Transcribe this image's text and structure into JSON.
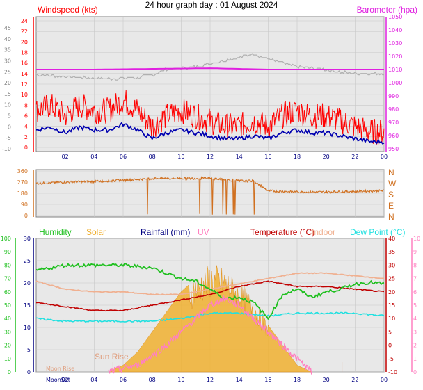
{
  "page": {
    "title": "24 hour graph day : 01 August 2024"
  },
  "colors": {
    "wind": "#ff0000",
    "gust": "#ff5a5a",
    "avg_wind": "#0000b0",
    "baro": "#e020e0",
    "baro_grey": "#b0b0b0",
    "dir": "#d07020",
    "humidity": "#20c020",
    "solar": "#f0b030",
    "rain": "#000080",
    "uv": "#ff80c0",
    "temp": "#c00000",
    "indoor": "#f0b090",
    "dew": "#20e0e0",
    "plot_bg": "#e8e8e8",
    "grid": "#c8c8c8"
  },
  "chart_data": [
    {
      "type": "line",
      "name": "wind",
      "left_label": "Windspeed (kts)",
      "right_label": "Barometer (hpa)",
      "x_ticks": [
        "02",
        "04",
        "06",
        "08",
        "10",
        "12",
        "14",
        "16",
        "18",
        "20",
        "22",
        "00"
      ],
      "y_left_ticks": [
        "24",
        "22",
        "20",
        "18",
        "16",
        "14",
        "12",
        "10",
        "8",
        "6",
        "4",
        "2",
        "0"
      ],
      "y_left_outer_ticks": [
        "45",
        "40",
        "35",
        "30",
        "25",
        "20",
        "15",
        "10",
        "5",
        "0",
        "-5",
        "-10"
      ],
      "y_right_ticks": [
        "1050",
        "1040",
        "1030",
        "1020",
        "1010",
        "1000",
        "990",
        "980",
        "970",
        "960",
        "950"
      ],
      "ylim_left": [
        0,
        24
      ],
      "ylim_right": [
        950,
        1050
      ],
      "x_range_hours": [
        0,
        24
      ],
      "series": [
        {
          "name": "Windspeed (kts)",
          "x": [
            0,
            1,
            2,
            3,
            4,
            5,
            6,
            7,
            8,
            9,
            10,
            11,
            12,
            13,
            14,
            15,
            16,
            17,
            18,
            19,
            20,
            21,
            22,
            23,
            24
          ],
          "values": [
            6,
            7,
            5,
            7,
            6,
            6,
            8,
            6,
            3,
            5,
            6,
            5,
            4,
            3,
            3,
            4,
            3,
            5,
            6,
            5,
            5,
            4,
            3,
            2,
            2
          ]
        },
        {
          "name": "Barometer (hpa)",
          "x": [
            0,
            4,
            8,
            12,
            16,
            20,
            24
          ],
          "values": [
            1010,
            1010,
            1010.5,
            1011,
            1010,
            1010,
            1010
          ]
        }
      ]
    },
    {
      "type": "line",
      "name": "wind-direction",
      "y_left_ticks": [
        "360",
        "270",
        "180",
        "90",
        "0"
      ],
      "y_right_ticks": [
        "N",
        "W",
        "S",
        "E",
        "N"
      ],
      "ylim": [
        0,
        360
      ],
      "x_range_hours": [
        0,
        24
      ],
      "series": [
        {
          "name": "Direction",
          "x": [
            0,
            2,
            4,
            6,
            8,
            10,
            12,
            14,
            15,
            16,
            18,
            20,
            22,
            24
          ],
          "values": [
            260,
            270,
            275,
            285,
            300,
            300,
            300,
            280,
            280,
            200,
            190,
            190,
            195,
            200
          ]
        }
      ]
    },
    {
      "type": "line",
      "name": "temp-hum-solar",
      "legend": [
        "Humidity",
        "Solar",
        "Rainfall (mm)",
        "UV",
        "Temperature (°C)",
        "Indoor",
        "Dew Point (°C)"
      ],
      "y_humidity_ticks": [
        "100",
        "90",
        "80",
        "70",
        "60",
        "50",
        "40",
        "30",
        "20",
        "10",
        "0"
      ],
      "y_temp_ticks": [
        "30",
        "25",
        "20",
        "15",
        "10",
        "5",
        "0"
      ],
      "y_right_temp_ticks": [
        "40",
        "35",
        "30",
        "25",
        "20",
        "15",
        "10",
        "5",
        "0",
        "-5",
        "-10"
      ],
      "y_right_uv_ticks": [
        "10",
        "9",
        "8",
        "7",
        "6",
        "5",
        "4",
        "3",
        "2",
        "1",
        "0"
      ],
      "x_ticks": [
        "02",
        "04",
        "06",
        "08",
        "10",
        "12",
        "14",
        "16",
        "18",
        "20",
        "22",
        "00"
      ],
      "annotations": [
        "Sun Rise",
        "Moon Rise",
        "MoonSet"
      ],
      "x_range_hours": [
        0,
        24
      ],
      "temp_range": [
        -10,
        40
      ],
      "series": [
        {
          "name": "Humidity",
          "x": [
            0,
            2,
            4,
            6,
            8,
            10,
            11,
            12,
            13,
            14,
            15,
            16,
            17,
            18,
            19,
            20,
            21,
            22,
            23,
            24
          ],
          "values": [
            76,
            80,
            80,
            80,
            78,
            70,
            68,
            62,
            55,
            56,
            52,
            40,
            58,
            62,
            56,
            60,
            62,
            66,
            67,
            66
          ]
        },
        {
          "name": "Temperature (°C)",
          "x": [
            0,
            2,
            4,
            6,
            8,
            10,
            12,
            14,
            16,
            18,
            20,
            22,
            24
          ],
          "values": [
            16,
            14.5,
            13,
            13,
            15,
            17,
            19,
            22,
            24,
            22,
            22,
            21,
            20
          ]
        },
        {
          "name": "Indoor",
          "x": [
            0,
            2,
            4,
            6,
            8,
            10,
            12,
            14,
            16,
            18,
            20,
            22,
            24
          ],
          "values": [
            24,
            21,
            20,
            20,
            19,
            19,
            21,
            23,
            25,
            27,
            27,
            26,
            25
          ]
        },
        {
          "name": "Dew Point (°C)",
          "x": [
            0,
            2,
            4,
            6,
            8,
            10,
            12,
            14,
            16,
            18,
            20,
            22,
            24
          ],
          "values": [
            10,
            9,
            9,
            9,
            9,
            10,
            12,
            12,
            11,
            12,
            12,
            12,
            11
          ]
        },
        {
          "name": "Solar",
          "x": [
            5,
            6,
            7,
            8,
            9,
            10,
            11,
            12,
            13,
            14,
            15,
            16,
            17,
            18,
            19
          ],
          "values": [
            0,
            5,
            15,
            30,
            45,
            60,
            70,
            78,
            75,
            65,
            55,
            35,
            20,
            5,
            0
          ]
        },
        {
          "name": "UV",
          "x": [
            5,
            7,
            9,
            11,
            12,
            13,
            14,
            15,
            16,
            17,
            18,
            19
          ],
          "values": [
            0,
            0.5,
            2,
            4,
            5,
            5.5,
            5,
            4,
            3,
            2,
            1,
            0
          ]
        }
      ]
    }
  ],
  "labels": {
    "sun_rise": "Sun Rise",
    "moon_rise": "Moon Rise",
    "moon_set": "MoonSet"
  }
}
